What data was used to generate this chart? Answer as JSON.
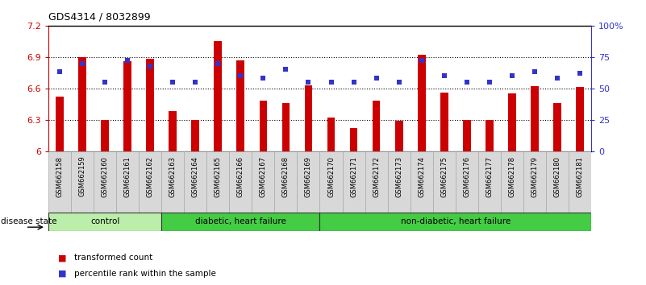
{
  "title": "GDS4314 / 8032899",
  "samples": [
    "GSM662158",
    "GSM662159",
    "GSM662160",
    "GSM662161",
    "GSM662162",
    "GSM662163",
    "GSM662164",
    "GSM662165",
    "GSM662166",
    "GSM662167",
    "GSM662168",
    "GSM662169",
    "GSM662170",
    "GSM662171",
    "GSM662172",
    "GSM662173",
    "GSM662174",
    "GSM662175",
    "GSM662176",
    "GSM662177",
    "GSM662178",
    "GSM662179",
    "GSM662180",
    "GSM662181"
  ],
  "bar_values": [
    6.52,
    6.9,
    6.3,
    6.86,
    6.88,
    6.38,
    6.3,
    7.05,
    6.87,
    6.48,
    6.46,
    6.63,
    6.32,
    6.22,
    6.48,
    6.29,
    6.92,
    6.56,
    6.3,
    6.3,
    6.55,
    6.62,
    6.46,
    6.61
  ],
  "percentile_values": [
    63,
    70,
    55,
    72,
    68,
    55,
    55,
    70,
    60,
    58,
    65,
    55,
    55,
    55,
    58,
    55,
    72,
    60,
    55,
    55,
    60,
    63,
    58,
    62
  ],
  "bar_color": "#cc0000",
  "percentile_color": "#3333cc",
  "ymin": 6.0,
  "ymax": 7.2,
  "yticks": [
    6.0,
    6.3,
    6.6,
    6.9,
    7.2
  ],
  "right_ytick_pcts": [
    0,
    25,
    50,
    75,
    100
  ],
  "right_ytick_labels": [
    "0",
    "25",
    "50",
    "75",
    "100%"
  ],
  "groups": [
    {
      "label": "control",
      "start": 0,
      "end": 5
    },
    {
      "label": "diabetic, heart failure",
      "start": 5,
      "end": 12
    },
    {
      "label": "non-diabetic, heart failure",
      "start": 12,
      "end": 24
    }
  ],
  "group_colors": [
    "#bbeebb",
    "#55cc55",
    "#55cc55"
  ],
  "legend_bar_label": "transformed count",
  "legend_pct_label": "percentile rank within the sample",
  "disease_state_label": "disease state"
}
